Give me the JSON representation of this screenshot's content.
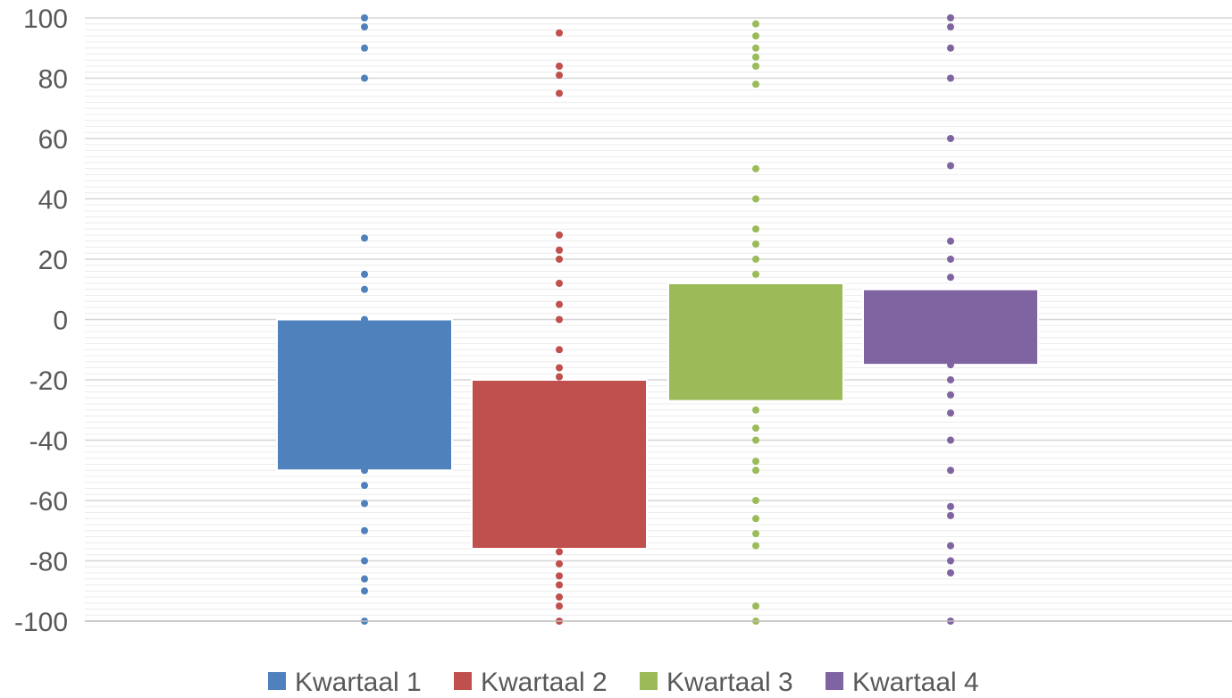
{
  "chart_data": {
    "type": "box",
    "title": "",
    "xlabel": "",
    "ylabel": "",
    "ylim": [
      -100,
      100
    ],
    "yticks": [
      100,
      80,
      60,
      40,
      20,
      0,
      -20,
      -40,
      -60,
      -80,
      -100
    ],
    "grid": true,
    "legend_position": "bottom",
    "series": [
      {
        "name": "Kwartaal 1",
        "color": "#4F81BD",
        "box": [
          -50,
          0
        ],
        "points": [
          100,
          97,
          90,
          80,
          27,
          15,
          10,
          0,
          -50,
          -55,
          -61,
          -70,
          -80,
          -86,
          -90,
          -100
        ]
      },
      {
        "name": "Kwartaal 2",
        "color": "#C0504D",
        "box": [
          -76,
          -20
        ],
        "points": [
          95,
          84,
          81,
          75,
          28,
          23,
          20,
          12,
          5,
          0,
          -10,
          -16,
          -19,
          -77,
          -81,
          -85,
          -88,
          -92,
          -95,
          -100
        ]
      },
      {
        "name": "Kwartaal 3",
        "color": "#9BBB59",
        "box": [
          -27,
          12
        ],
        "points": [
          98,
          94,
          90,
          87,
          84,
          78,
          50,
          40,
          30,
          25,
          20,
          15,
          -30,
          -36,
          -40,
          -47,
          -50,
          -60,
          -66,
          -71,
          -75,
          -95,
          -100
        ]
      },
      {
        "name": "Kwartaal 4",
        "color": "#8064A2",
        "box": [
          -15,
          10
        ],
        "points": [
          100,
          97,
          90,
          80,
          60,
          51,
          26,
          20,
          14,
          -15,
          -20,
          -25,
          -31,
          -40,
          -50,
          -62,
          -65,
          -75,
          -80,
          -84,
          -100
        ]
      }
    ]
  }
}
